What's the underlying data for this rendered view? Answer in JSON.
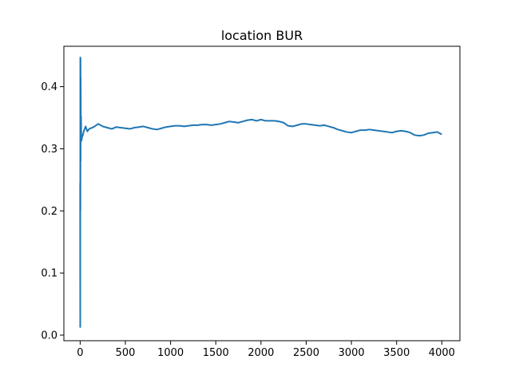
{
  "chart_data": {
    "type": "line",
    "title": "location BUR",
    "xlabel": "",
    "ylabel": "",
    "xlim": [
      -180,
      4200
    ],
    "ylim": [
      -0.009,
      0.465
    ],
    "xticks": [
      0,
      500,
      1000,
      1500,
      2000,
      2500,
      3000,
      3500,
      4000
    ],
    "yticks": [
      0.0,
      0.1,
      0.2,
      0.3,
      0.4
    ],
    "xtick_labels": [
      "0",
      "500",
      "1000",
      "1500",
      "2000",
      "2500",
      "3000",
      "3500",
      "4000"
    ],
    "ytick_labels": [
      "0.0",
      "0.1",
      "0.2",
      "0.3",
      "0.4"
    ],
    "grid": false,
    "legend": "none",
    "series": [
      {
        "color": "#1f77b4",
        "x": [
          0,
          1,
          2,
          3,
          4,
          5,
          6,
          8,
          10,
          12,
          15,
          20,
          30,
          40,
          60,
          80,
          100,
          150,
          200,
          250,
          300,
          350,
          400,
          450,
          500,
          550,
          600,
          650,
          700,
          750,
          800,
          850,
          900,
          950,
          1000,
          1050,
          1100,
          1150,
          1200,
          1250,
          1300,
          1350,
          1400,
          1450,
          1500,
          1550,
          1600,
          1650,
          1700,
          1750,
          1800,
          1850,
          1900,
          1950,
          2000,
          2050,
          2100,
          2150,
          2200,
          2250,
          2300,
          2350,
          2400,
          2450,
          2500,
          2550,
          2600,
          2650,
          2700,
          2750,
          2800,
          2850,
          2900,
          2950,
          3000,
          3050,
          3100,
          3150,
          3200,
          3250,
          3300,
          3350,
          3400,
          3450,
          3500,
          3550,
          3600,
          3650,
          3700,
          3750,
          3800,
          3850,
          3900,
          3950,
          4000
        ],
        "y": [
          0.245,
          0.013,
          0.447,
          0.2,
          0.445,
          0.28,
          0.415,
          0.33,
          0.352,
          0.32,
          0.313,
          0.318,
          0.322,
          0.328,
          0.336,
          0.328,
          0.332,
          0.335,
          0.34,
          0.336,
          0.334,
          0.332,
          0.335,
          0.334,
          0.333,
          0.332,
          0.334,
          0.335,
          0.336,
          0.334,
          0.332,
          0.331,
          0.333,
          0.335,
          0.336,
          0.337,
          0.337,
          0.336,
          0.337,
          0.338,
          0.338,
          0.339,
          0.339,
          0.338,
          0.339,
          0.34,
          0.342,
          0.344,
          0.343,
          0.342,
          0.344,
          0.346,
          0.347,
          0.345,
          0.347,
          0.345,
          0.345,
          0.345,
          0.344,
          0.342,
          0.337,
          0.336,
          0.338,
          0.34,
          0.34,
          0.339,
          0.338,
          0.337,
          0.338,
          0.336,
          0.334,
          0.331,
          0.329,
          0.327,
          0.326,
          0.328,
          0.33,
          0.33,
          0.331,
          0.33,
          0.329,
          0.328,
          0.327,
          0.326,
          0.328,
          0.329,
          0.328,
          0.326,
          0.322,
          0.321,
          0.322,
          0.325,
          0.326,
          0.327,
          0.323
        ]
      }
    ]
  }
}
